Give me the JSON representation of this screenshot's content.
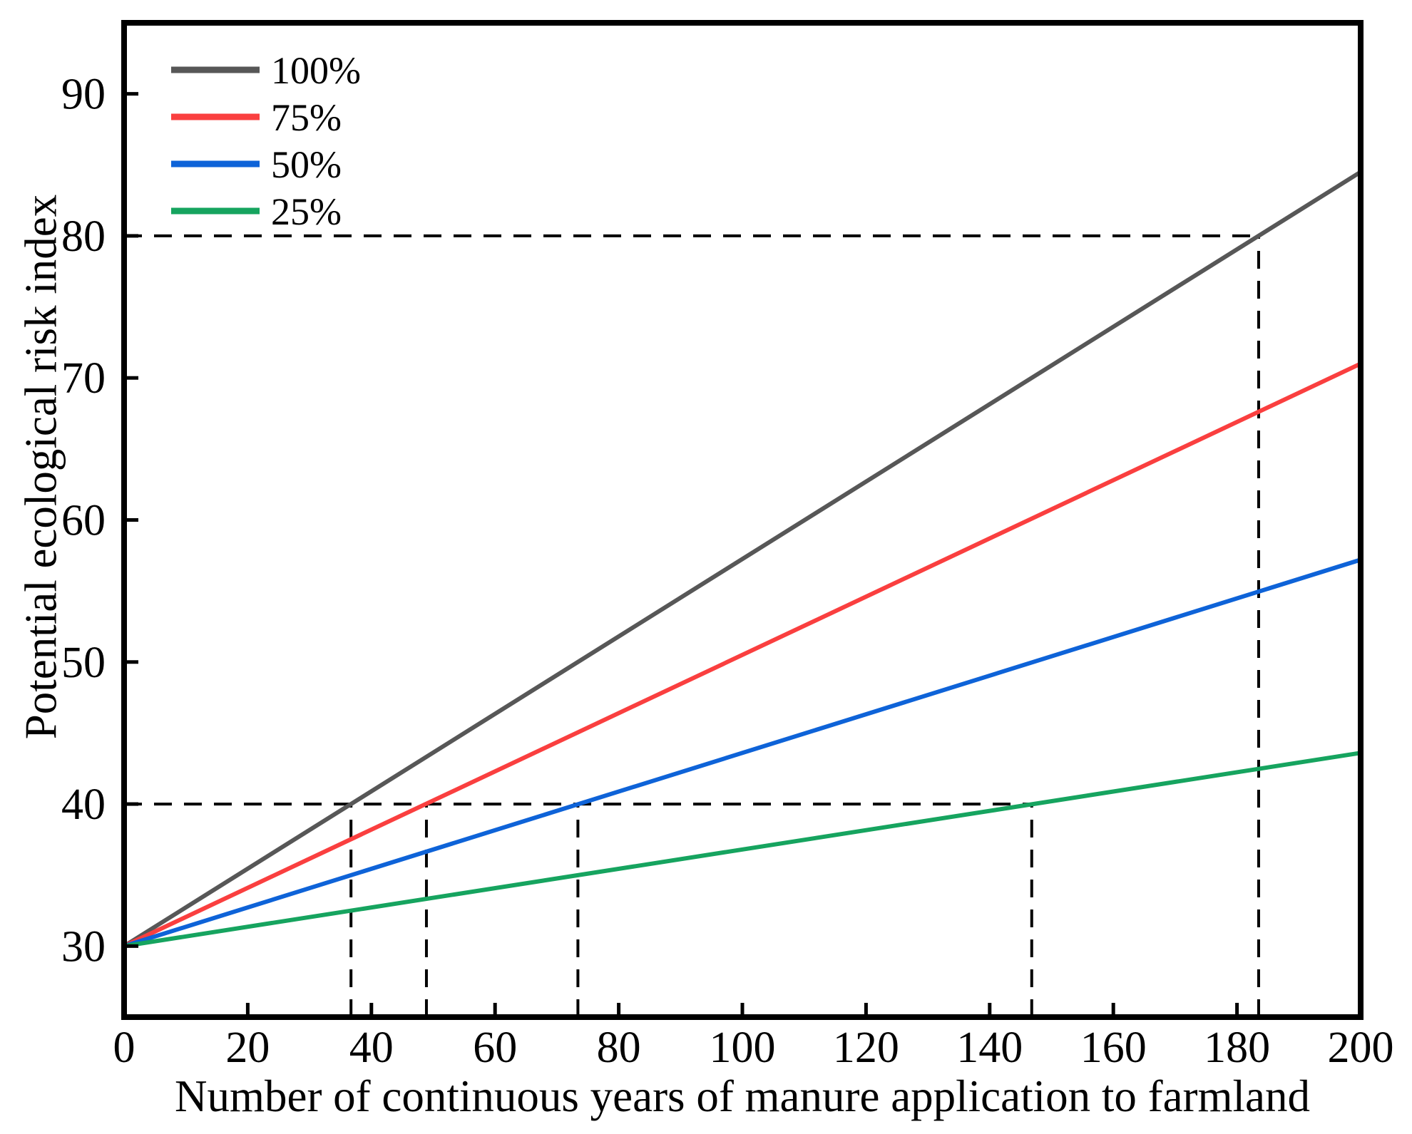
{
  "figure": {
    "background": "#ffffff",
    "text_color": "#000000"
  },
  "chart_data": {
    "type": "line",
    "title": "",
    "xlabel": "Number of continuous years of manure application to farmland",
    "ylabel": "Potential ecological risk index",
    "xlim": [
      0,
      200
    ],
    "ylim": [
      25,
      95
    ],
    "x_ticks": [
      0,
      20,
      40,
      60,
      80,
      100,
      120,
      140,
      160,
      180,
      200
    ],
    "y_ticks": [
      30,
      40,
      50,
      60,
      70,
      80,
      90
    ],
    "grid": false,
    "axis_color": "#000000",
    "legend_position": "upper-left",
    "series": [
      {
        "name": "100%",
        "color": "#575757",
        "points": [
          [
            0,
            30
          ],
          [
            200,
            84.5
          ]
        ]
      },
      {
        "name": "75%",
        "color": "#fa3f3f",
        "points": [
          [
            0,
            30
          ],
          [
            200,
            71.0
          ]
        ]
      },
      {
        "name": "50%",
        "color": "#0e63d8",
        "points": [
          [
            0,
            30
          ],
          [
            200,
            57.2
          ]
        ]
      },
      {
        "name": "25%",
        "color": "#16a45f",
        "points": [
          [
            0,
            30
          ],
          [
            200,
            43.6
          ]
        ]
      }
    ],
    "reference_lines": {
      "color": "#000000",
      "style": "dashed",
      "horizontal": [
        {
          "y": 40,
          "x_start": 0,
          "x_end": 146.8
        },
        {
          "y": 80,
          "x_start": 0,
          "x_end": 183.5
        }
      ],
      "vertical": [
        {
          "x": 36.7,
          "y_start": 25,
          "y_end": 40
        },
        {
          "x": 48.9,
          "y_start": 25,
          "y_end": 40
        },
        {
          "x": 73.4,
          "y_start": 25,
          "y_end": 40
        },
        {
          "x": 146.8,
          "y_start": 25,
          "y_end": 40
        },
        {
          "x": 183.5,
          "y_start": 25,
          "y_end": 80
        }
      ]
    }
  }
}
